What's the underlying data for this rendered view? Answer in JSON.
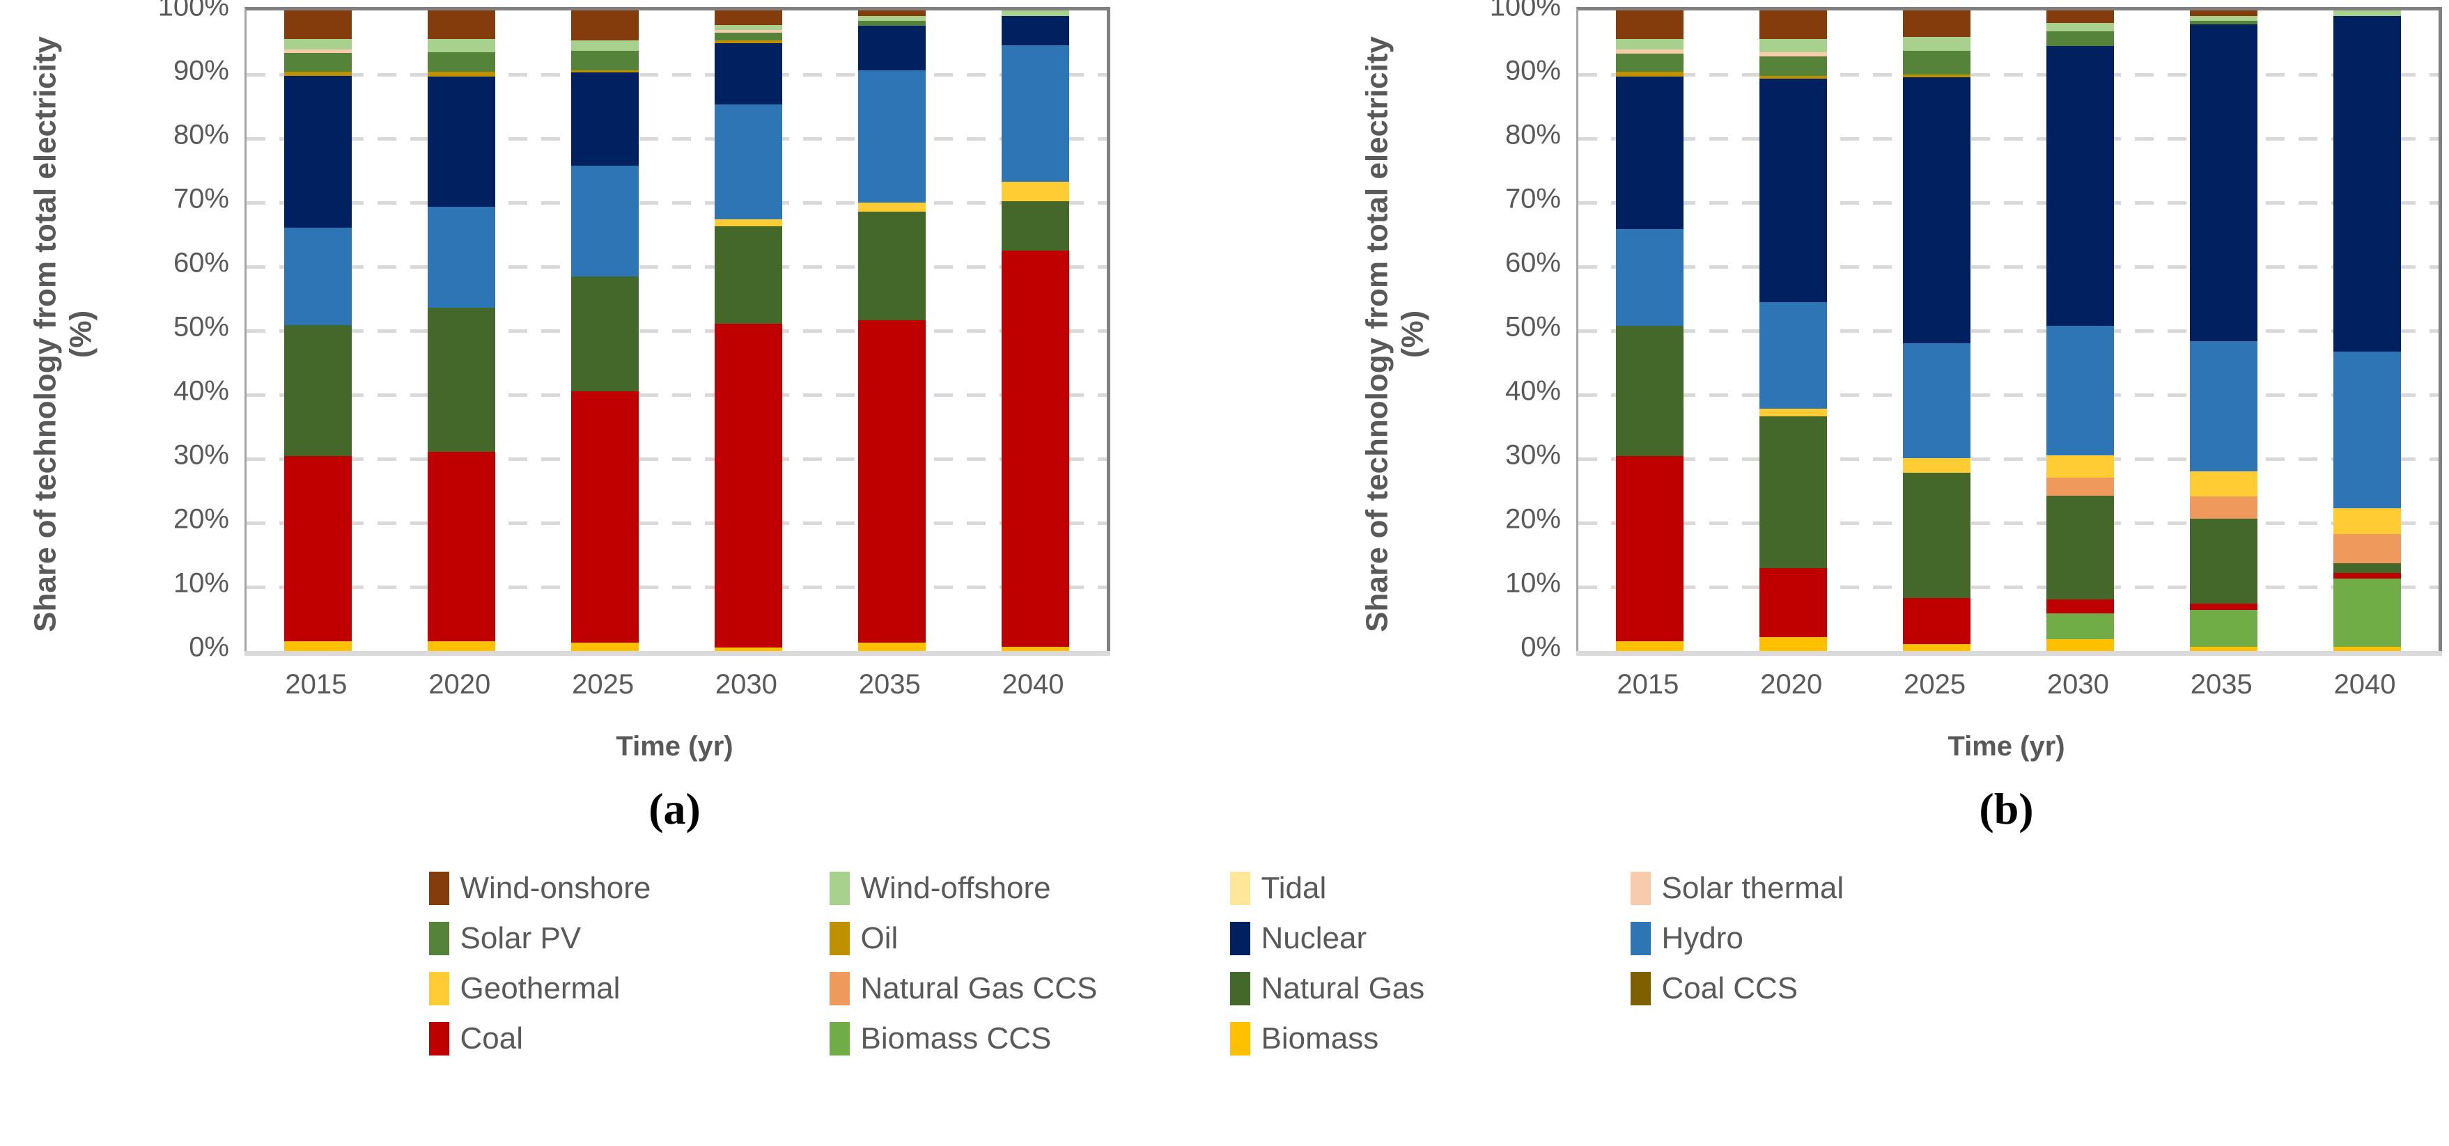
{
  "figure": {
    "background": "#FFFFFF",
    "text_color": "#595959",
    "grid_color": "#D9D9D9",
    "border_color": "#808080",
    "axis_line_color": "#D9D9D9"
  },
  "colors": {
    "Wind-onshore": "#843C0C",
    "Wind-offshore": "#A9D18E",
    "Tidal": "#FFE699",
    "Solar thermal": "#F8CBAD",
    "Solar PV": "#56833A",
    "Oil": "#BF9000",
    "Nuclear": "#002060",
    "Hydro": "#2E75B6",
    "Geothermal": "#FFCD33",
    "Natural Gas CCS": "#F0995C",
    "Natural Gas": "#44682A",
    "Coal CCS": "#7F6000",
    "Coal": "#C00000",
    "Biomass CCS": "#70AD47",
    "Biomass": "#FFC000"
  },
  "chart_data": [
    {
      "id": "a",
      "type": "bar",
      "stacked": true,
      "panel_label": "(a)",
      "xlabel": "Time (yr)",
      "ylabel_line1": "Share of technology from total electricity",
      "ylabel_line2": "(%)",
      "categories": [
        "2015",
        "2020",
        "2025",
        "2030",
        "2035",
        "2040"
      ],
      "ylim": [
        0,
        100
      ],
      "yticks": [
        "100%",
        "90%",
        "80%",
        "70%",
        "60%",
        "50%",
        "40%",
        "30%",
        "20%",
        "10%",
        "0%"
      ],
      "grid": "horizontal-dashed",
      "legend_position": "shared-bottom",
      "series": [
        {
          "name": "Biomass",
          "values": [
            1.5,
            1.5,
            1.3,
            0.5,
            1.3,
            0.6
          ]
        },
        {
          "name": "Biomass CCS",
          "values": [
            0,
            0,
            0,
            0,
            0,
            0
          ]
        },
        {
          "name": "Coal",
          "values": [
            28.9,
            29.6,
            39.3,
            50.6,
            50.3,
            61.9
          ]
        },
        {
          "name": "Coal CCS",
          "values": [
            0,
            0,
            0,
            0,
            0,
            0
          ]
        },
        {
          "name": "Natural Gas",
          "values": [
            20.4,
            22.5,
            17.9,
            15.2,
            17.0,
            7.7
          ]
        },
        {
          "name": "Natural Gas CCS",
          "values": [
            0,
            0,
            0,
            0,
            0,
            0
          ]
        },
        {
          "name": "Geothermal",
          "values": [
            0,
            0,
            0,
            1.1,
            1.4,
            3.1
          ]
        },
        {
          "name": "Hydro",
          "values": [
            15.2,
            15.7,
            17.3,
            17.9,
            20.7,
            21.3
          ]
        },
        {
          "name": "Nuclear",
          "values": [
            23.7,
            20.4,
            14.5,
            9.6,
            6.9,
            4.5
          ]
        },
        {
          "name": "Oil",
          "values": [
            0.7,
            0.7,
            0.4,
            0.4,
            0,
            0
          ]
        },
        {
          "name": "Solar PV",
          "values": [
            2.9,
            3.1,
            3.0,
            1.2,
            0.8,
            0
          ]
        },
        {
          "name": "Solar thermal",
          "values": [
            0.5,
            0,
            0,
            0.5,
            0,
            0
          ]
        },
        {
          "name": "Tidal",
          "values": [
            0,
            0,
            0,
            0,
            0,
            0
          ]
        },
        {
          "name": "Wind-offshore",
          "values": [
            1.7,
            2.0,
            1.6,
            0.7,
            0.7,
            0.9
          ]
        },
        {
          "name": "Wind-onshore",
          "values": [
            4.4,
            4.5,
            4.7,
            2.3,
            0.9,
            0
          ]
        }
      ]
    },
    {
      "id": "b",
      "type": "bar",
      "stacked": true,
      "panel_label": "(b)",
      "xlabel": "Time (yr)",
      "ylabel_line1": "Share of technology from total electricity",
      "ylabel_line2": "(%)",
      "categories": [
        "2015",
        "2020",
        "2025",
        "2030",
        "2035",
        "2040"
      ],
      "ylim": [
        0,
        100
      ],
      "yticks": [
        "100%",
        "90%",
        "80%",
        "70%",
        "60%",
        "50%",
        "40%",
        "30%",
        "20%",
        "10%",
        "0%"
      ],
      "grid": "horizontal-dashed",
      "legend_position": "shared-bottom",
      "series": [
        {
          "name": "Biomass",
          "values": [
            1.5,
            2.2,
            1.1,
            1.8,
            0.6,
            0.6
          ]
        },
        {
          "name": "Biomass CCS",
          "values": [
            0,
            0,
            0,
            4.1,
            5.8,
            10.7
          ]
        },
        {
          "name": "Coal",
          "values": [
            28.9,
            10.7,
            7.2,
            2.1,
            1.0,
            0.9
          ]
        },
        {
          "name": "Coal CCS",
          "values": [
            0,
            0,
            0,
            0,
            0,
            0
          ]
        },
        {
          "name": "Natural Gas",
          "values": [
            20.4,
            23.7,
            19.5,
            16.2,
            13.3,
            1.5
          ]
        },
        {
          "name": "Natural Gas CCS",
          "values": [
            0,
            0,
            0,
            2.9,
            3.4,
            4.6
          ]
        },
        {
          "name": "Geothermal",
          "values": [
            0,
            1.2,
            2.3,
            3.4,
            3.9,
            4.0
          ]
        },
        {
          "name": "Hydro",
          "values": [
            15.1,
            16.7,
            17.9,
            20.3,
            20.4,
            24.4
          ]
        },
        {
          "name": "Nuclear",
          "values": [
            23.8,
            34.8,
            41.6,
            43.7,
            49.4,
            52.4
          ]
        },
        {
          "name": "Oil",
          "values": [
            0.7,
            0.5,
            0.4,
            0,
            0,
            0
          ]
        },
        {
          "name": "Solar PV",
          "values": [
            2.9,
            3.0,
            3.7,
            2.3,
            0.6,
            0
          ]
        },
        {
          "name": "Solar thermal",
          "values": [
            0.6,
            0.7,
            0,
            0,
            0,
            0
          ]
        },
        {
          "name": "Tidal",
          "values": [
            0,
            0,
            0,
            0,
            0,
            0
          ]
        },
        {
          "name": "Wind-offshore",
          "values": [
            1.7,
            2.1,
            2.2,
            1.2,
            0.7,
            0.9
          ]
        },
        {
          "name": "Wind-onshore",
          "values": [
            4.4,
            4.4,
            4.1,
            2.0,
            0.9,
            0
          ]
        }
      ]
    }
  ],
  "legend": {
    "rows": [
      [
        "Wind-onshore",
        "Wind-offshore",
        "Tidal",
        "Solar thermal"
      ],
      [
        "Solar PV",
        "Oil",
        "Nuclear",
        "Hydro"
      ],
      [
        "Geothermal",
        "Natural Gas CCS",
        "Natural Gas",
        "Coal CCS"
      ],
      [
        "Coal",
        "Biomass CCS",
        "Biomass"
      ]
    ]
  }
}
